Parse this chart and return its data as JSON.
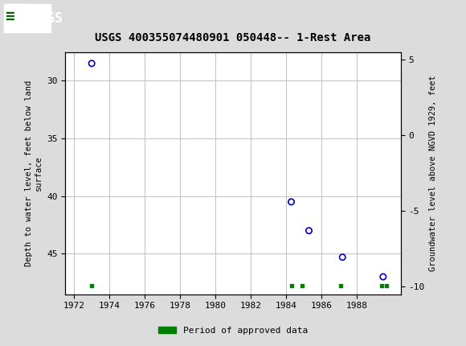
{
  "title": "USGS 400355074480901 050448-- 1-Rest Area",
  "scatter_x": [
    1973.0,
    1984.3,
    1985.3,
    1987.2,
    1989.5
  ],
  "scatter_y": [
    28.5,
    40.5,
    43.0,
    45.3,
    47.0
  ],
  "approved_x": [
    1973.0,
    1984.3,
    1984.9,
    1987.1,
    1989.4,
    1989.7
  ],
  "approved_y": [
    47.8,
    47.8,
    47.8,
    47.8,
    47.8,
    47.8
  ],
  "xlim": [
    1971.5,
    1990.5
  ],
  "ylim_left": [
    48.5,
    27.5
  ],
  "ylim_right": [
    -10.5,
    5.5
  ],
  "xticks": [
    1972,
    1974,
    1976,
    1978,
    1980,
    1982,
    1984,
    1986,
    1988
  ],
  "yticks_left": [
    30,
    35,
    40,
    45
  ],
  "yticks_right": [
    5,
    0,
    -5,
    -10
  ],
  "xlabel": "",
  "ylabel_left": "Depth to water level, feet below land\nsurface",
  "ylabel_right": "Groundwater level above NGVD 1929, feet",
  "scatter_color": "#0000cc",
  "approved_color": "#008000",
  "header_color": "#006400",
  "background_color": "#dcdcdc",
  "plot_bg_color": "#ffffff",
  "grid_color": "#c0c0c0",
  "legend_label": "Period of approved data"
}
